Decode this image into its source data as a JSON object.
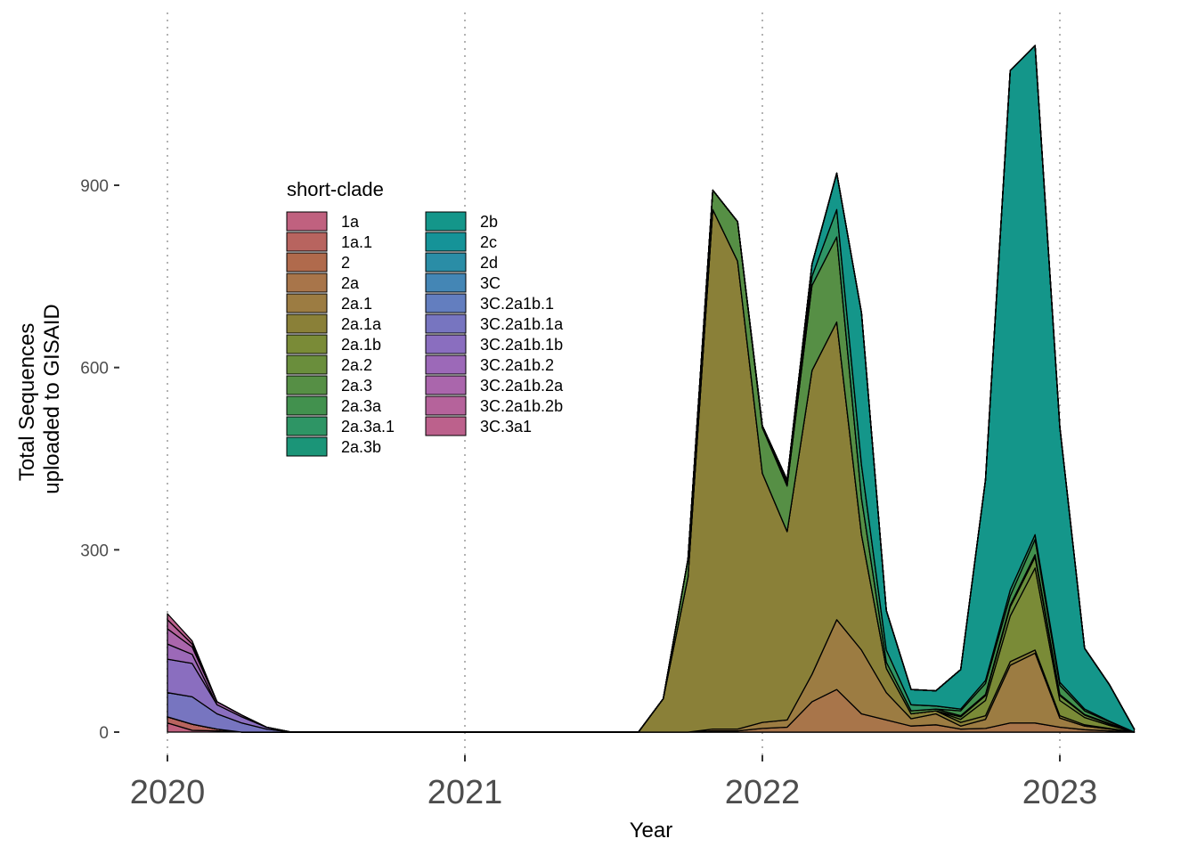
{
  "chart_data": {
    "type": "area",
    "stacked": true,
    "title": "",
    "xlabel": "Year",
    "ylabel_lines": [
      "Total Sequences",
      "uploaded to GISAID"
    ],
    "xlim": [
      2020.0,
      2023.25
    ],
    "ylim": [
      0,
      1120
    ],
    "x_ticks": [
      {
        "value": 2020,
        "label": "2020"
      },
      {
        "value": 2021,
        "label": "2021"
      },
      {
        "value": 2022,
        "label": "2022"
      },
      {
        "value": 2023,
        "label": "2023"
      }
    ],
    "y_ticks": [
      {
        "value": 0,
        "label": "0"
      },
      {
        "value": 300,
        "label": "300"
      },
      {
        "value": 600,
        "label": "600"
      },
      {
        "value": 900,
        "label": "900"
      }
    ],
    "grid": "vertical dotted lines at x ticks",
    "legend": {
      "title": "short-clade",
      "placement": "inside top-left",
      "columns": 2
    },
    "x": [
      "2020-01",
      "2020-02",
      "2020-03",
      "2020-04",
      "2020-05",
      "2020-06",
      "2020-07",
      "2020-08",
      "2020-09",
      "2020-10",
      "2020-11",
      "2020-12",
      "2021-01",
      "2021-02",
      "2021-03",
      "2021-04",
      "2021-05",
      "2021-06",
      "2021-07",
      "2021-08",
      "2021-09",
      "2021-10",
      "2021-11",
      "2021-12",
      "2022-01",
      "2022-02",
      "2022-03",
      "2022-04",
      "2022-05",
      "2022-06",
      "2022-07",
      "2022-08",
      "2022-09",
      "2022-10",
      "2022-11",
      "2022-12",
      "2023-01",
      "2023-02",
      "2023-03",
      "2023-04"
    ],
    "series": [
      {
        "name": "1a",
        "color": "#C0617F",
        "values": [
          15,
          3,
          2,
          0,
          0,
          0,
          0,
          0,
          0,
          0,
          0,
          0,
          0,
          0,
          0,
          0,
          0,
          0,
          0,
          0,
          0,
          0,
          0,
          0,
          0,
          0,
          0,
          0,
          0,
          0,
          0,
          0,
          0,
          0,
          0,
          0,
          0,
          0,
          0,
          0
        ]
      },
      {
        "name": "1a.1",
        "color": "#B8645F",
        "values": [
          10,
          10,
          3,
          0,
          0,
          0,
          0,
          0,
          0,
          0,
          0,
          0,
          0,
          0,
          0,
          0,
          0,
          0,
          0,
          0,
          0,
          0,
          0,
          0,
          0,
          0,
          0,
          0,
          0,
          0,
          0,
          0,
          0,
          0,
          0,
          0,
          0,
          0,
          0,
          0
        ]
      },
      {
        "name": "2",
        "color": "#B06A4C",
        "values": [
          0,
          0,
          0,
          0,
          0,
          0,
          0,
          0,
          0,
          0,
          0,
          0,
          0,
          0,
          0,
          0,
          0,
          0,
          0,
          0,
          0,
          0,
          0,
          0,
          0,
          0,
          0,
          0,
          0,
          0,
          0,
          0,
          0,
          0,
          0,
          0,
          0,
          0,
          0,
          0
        ]
      },
      {
        "name": "2a",
        "color": "#A8754A",
        "values": [
          0,
          0,
          0,
          0,
          0,
          0,
          0,
          0,
          0,
          0,
          0,
          0,
          0,
          0,
          0,
          0,
          0,
          0,
          0,
          0,
          0,
          0,
          2,
          2,
          6,
          8,
          50,
          70,
          30,
          20,
          10,
          12,
          5,
          6,
          15,
          15,
          8,
          4,
          2,
          0
        ]
      },
      {
        "name": "2a.1",
        "color": "#9C7C42",
        "values": [
          0,
          0,
          0,
          0,
          0,
          0,
          0,
          0,
          0,
          0,
          0,
          0,
          0,
          0,
          0,
          0,
          0,
          0,
          0,
          0,
          0,
          0,
          3,
          3,
          10,
          12,
          45,
          115,
          105,
          45,
          12,
          18,
          5,
          15,
          95,
          115,
          15,
          6,
          3,
          0
        ]
      },
      {
        "name": "2a.1a",
        "color": "#8A8038",
        "values": [
          0,
          0,
          0,
          0,
          0,
          0,
          0,
          0,
          0,
          0,
          0,
          0,
          0,
          0,
          0,
          0,
          0,
          0,
          0,
          0,
          55,
          255,
          855,
          770,
          410,
          310,
          500,
          490,
          190,
          40,
          8,
          5,
          6,
          6,
          6,
          5,
          4,
          2,
          1,
          0
        ]
      },
      {
        "name": "2a.1b",
        "color": "#7A8B37",
        "values": [
          0,
          0,
          0,
          0,
          0,
          0,
          0,
          0,
          0,
          0,
          0,
          0,
          0,
          0,
          0,
          0,
          0,
          0,
          0,
          0,
          0,
          0,
          0,
          0,
          0,
          0,
          0,
          0,
          0,
          0,
          0,
          0,
          5,
          25,
          75,
          135,
          25,
          12,
          5,
          0
        ]
      },
      {
        "name": "2a.2",
        "color": "#6A8E3C",
        "values": [
          0,
          0,
          0,
          0,
          0,
          0,
          0,
          0,
          0,
          0,
          0,
          0,
          0,
          0,
          0,
          0,
          0,
          0,
          0,
          0,
          0,
          0,
          0,
          0,
          0,
          0,
          0,
          0,
          0,
          0,
          0,
          0,
          4,
          8,
          15,
          18,
          8,
          4,
          2,
          0
        ]
      },
      {
        "name": "2a.3",
        "color": "#568F45",
        "values": [
          0,
          0,
          0,
          0,
          0,
          0,
          0,
          0,
          0,
          0,
          0,
          0,
          0,
          0,
          0,
          0,
          0,
          0,
          0,
          0,
          0,
          30,
          32,
          65,
          75,
          75,
          140,
          140,
          60,
          10,
          5,
          3,
          2,
          2,
          3,
          4,
          2,
          1,
          1,
          0
        ]
      },
      {
        "name": "2a.3a",
        "color": "#42914E",
        "values": [
          0,
          0,
          0,
          0,
          0,
          0,
          0,
          0,
          0,
          0,
          0,
          0,
          0,
          0,
          0,
          0,
          0,
          0,
          0,
          0,
          0,
          0,
          0,
          0,
          0,
          0,
          0,
          0,
          0,
          0,
          0,
          0,
          8,
          18,
          15,
          25,
          15,
          6,
          3,
          0
        ]
      },
      {
        "name": "2a.3a.1",
        "color": "#2E9565",
        "values": [
          0,
          0,
          0,
          0,
          0,
          0,
          0,
          0,
          0,
          0,
          0,
          0,
          0,
          0,
          0,
          0,
          0,
          0,
          0,
          0,
          0,
          0,
          0,
          0,
          0,
          5,
          15,
          45,
          55,
          20,
          10,
          5,
          3,
          5,
          10,
          8,
          5,
          3,
          1,
          0
        ]
      },
      {
        "name": "2a.3b",
        "color": "#1B9578",
        "values": [
          0,
          0,
          0,
          0,
          0,
          0,
          0,
          0,
          0,
          0,
          0,
          0,
          0,
          0,
          0,
          0,
          0,
          0,
          0,
          0,
          0,
          0,
          0,
          0,
          0,
          0,
          0,
          0,
          0,
          0,
          0,
          0,
          0,
          0,
          0,
          0,
          0,
          0,
          0,
          0
        ]
      },
      {
        "name": "2b",
        "color": "#14968A",
        "values": [
          0,
          0,
          0,
          0,
          0,
          0,
          0,
          0,
          0,
          0,
          0,
          0,
          0,
          0,
          0,
          0,
          0,
          0,
          0,
          0,
          0,
          0,
          0,
          0,
          3,
          5,
          20,
          60,
          250,
          65,
          25,
          25,
          65,
          330,
          855,
          805,
          420,
          100,
          60,
          5
        ]
      },
      {
        "name": "2c",
        "color": "#159398",
        "values": [
          0,
          0,
          0,
          0,
          0,
          0,
          0,
          0,
          0,
          0,
          0,
          0,
          0,
          0,
          0,
          0,
          0,
          0,
          0,
          0,
          0,
          0,
          0,
          0,
          0,
          0,
          0,
          0,
          0,
          0,
          0,
          0,
          0,
          0,
          0,
          0,
          0,
          0,
          0,
          0
        ]
      },
      {
        "name": "2d",
        "color": "#2A8DA6",
        "values": [
          0,
          0,
          0,
          0,
          0,
          0,
          0,
          0,
          0,
          0,
          0,
          0,
          0,
          0,
          0,
          0,
          0,
          0,
          0,
          0,
          0,
          0,
          0,
          0,
          0,
          0,
          0,
          0,
          0,
          0,
          0,
          0,
          0,
          0,
          0,
          0,
          0,
          0,
          0,
          0
        ]
      },
      {
        "name": "3C",
        "color": "#4486B5",
        "values": [
          0,
          0,
          0,
          0,
          0,
          0,
          0,
          0,
          0,
          0,
          0,
          0,
          0,
          0,
          0,
          0,
          0,
          0,
          0,
          0,
          0,
          0,
          0,
          0,
          0,
          0,
          0,
          0,
          0,
          0,
          0,
          0,
          0,
          0,
          0,
          0,
          0,
          0,
          0,
          0
        ]
      },
      {
        "name": "3C.2a1b.1",
        "color": "#637EBF",
        "values": [
          0,
          0,
          0,
          0,
          0,
          0,
          0,
          0,
          0,
          0,
          0,
          0,
          0,
          0,
          0,
          0,
          0,
          0,
          0,
          0,
          0,
          0,
          0,
          0,
          0,
          0,
          0,
          0,
          0,
          0,
          0,
          0,
          0,
          0,
          0,
          0,
          0,
          0,
          0,
          0
        ]
      },
      {
        "name": "3C.2a1b.1a",
        "color": "#7775C0",
        "values": [
          40,
          45,
          25,
          15,
          5,
          0,
          0,
          0,
          0,
          0,
          0,
          0,
          0,
          0,
          0,
          0,
          0,
          0,
          0,
          0,
          0,
          0,
          0,
          0,
          0,
          0,
          0,
          0,
          0,
          0,
          0,
          0,
          0,
          0,
          0,
          0,
          0,
          0,
          0,
          0
        ]
      },
      {
        "name": "3C.2a1b.1b",
        "color": "#8A6EBF",
        "values": [
          55,
          55,
          15,
          10,
          3,
          0,
          0,
          0,
          0,
          0,
          0,
          0,
          0,
          0,
          0,
          0,
          0,
          0,
          0,
          0,
          0,
          0,
          0,
          0,
          0,
          0,
          0,
          0,
          0,
          0,
          0,
          0,
          0,
          0,
          0,
          0,
          0,
          0,
          0,
          0
        ]
      },
      {
        "name": "3C.2a1b.2",
        "color": "#9C69B8",
        "values": [
          25,
          15,
          0,
          0,
          0,
          0,
          0,
          0,
          0,
          0,
          0,
          0,
          0,
          0,
          0,
          0,
          0,
          0,
          0,
          0,
          0,
          0,
          0,
          0,
          0,
          0,
          0,
          0,
          0,
          0,
          0,
          0,
          0,
          0,
          0,
          0,
          0,
          0,
          0,
          0
        ]
      },
      {
        "name": "3C.2a1b.2a",
        "color": "#AA66AC",
        "values": [
          25,
          12,
          5,
          3,
          0,
          0,
          0,
          0,
          0,
          0,
          0,
          0,
          0,
          0,
          0,
          0,
          0,
          0,
          0,
          0,
          0,
          0,
          0,
          0,
          0,
          0,
          0,
          0,
          0,
          0,
          0,
          0,
          0,
          0,
          0,
          0,
          0,
          0,
          0,
          0
        ]
      },
      {
        "name": "3C.2a1b.2b",
        "color": "#B5639B",
        "values": [
          15,
          5,
          0,
          0,
          0,
          0,
          0,
          0,
          0,
          0,
          0,
          0,
          0,
          0,
          0,
          0,
          0,
          0,
          0,
          0,
          0,
          0,
          0,
          0,
          0,
          0,
          0,
          0,
          0,
          0,
          0,
          0,
          0,
          0,
          0,
          0,
          0,
          0,
          0,
          0
        ]
      },
      {
        "name": "3C.3a1",
        "color": "#BC618C",
        "values": [
          10,
          5,
          0,
          0,
          0,
          0,
          0,
          0,
          0,
          0,
          0,
          0,
          0,
          0,
          0,
          0,
          0,
          0,
          0,
          0,
          0,
          0,
          0,
          0,
          0,
          0,
          0,
          0,
          0,
          0,
          0,
          0,
          0,
          0,
          0,
          0,
          0,
          0,
          0,
          0
        ]
      }
    ]
  }
}
